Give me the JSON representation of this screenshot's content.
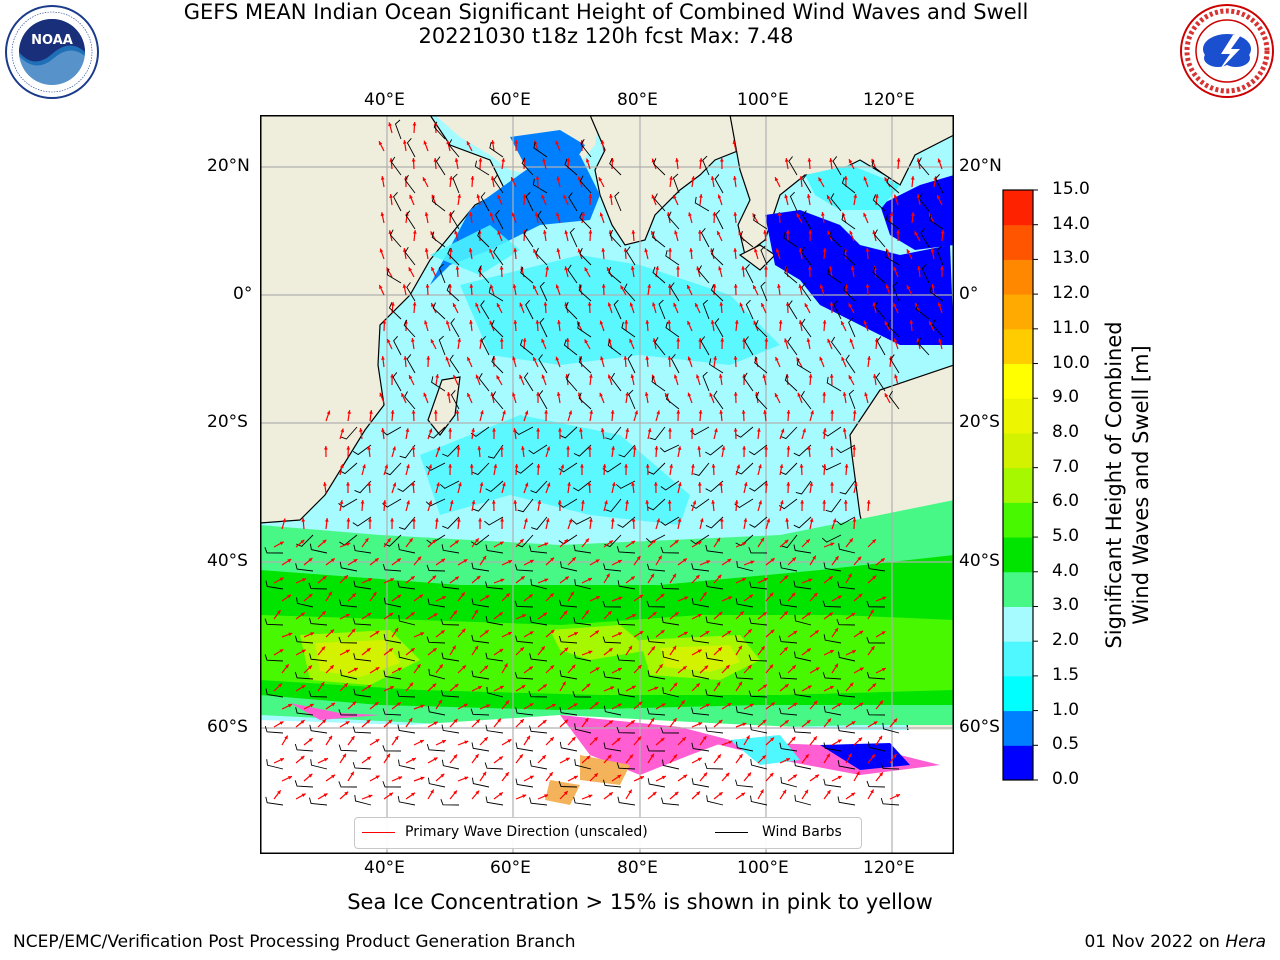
{
  "title": {
    "line1": "GEFS MEAN Indian Ocean Significant Height of Combined Wind Waves and Swell",
    "line2": "20221030 t18z 120h fcst   Max: 7.48"
  },
  "logos": {
    "left": {
      "text": "NOAA",
      "ring_text": "NATIONAL OCEANIC AND ATMOSPHERIC ADMINISTRATION · U.S. DEPARTMENT OF COMMERCE"
    },
    "right": {
      "ring_text": "NATIONAL WEATHER SERVICE"
    }
  },
  "map": {
    "lon_ticks": [
      "40°E",
      "60°E",
      "80°E",
      "100°E",
      "120°E"
    ],
    "lat_ticks_left": [
      "20°N",
      "0°",
      "20°S",
      "40°S",
      "60°S"
    ],
    "lat_ticks_right": [
      "20°N",
      "0°",
      "20°S",
      "40°S",
      "60°S"
    ],
    "colors": {
      "land": "#efeedd",
      "ice": "#ffffff",
      "arrow": "#ff0000",
      "barb": "#000000",
      "grid": "#b0b0b0"
    }
  },
  "legend": {
    "wave_label": "Primary Wave Direction (unscaled)",
    "wind_label": "Wind Barbs",
    "wave_color": "#ff0000",
    "wind_color": "#000000"
  },
  "colorbar": {
    "title_line1": "Significant Height of Combined",
    "title_line2": "Wind Waves and Swell [m]",
    "ticks": [
      "15.0",
      "14.0",
      "13.0",
      "12.0",
      "11.0",
      "10.0",
      "9.0",
      "8.0",
      "7.0",
      "6.0",
      "5.0",
      "4.0",
      "3.0",
      "2.0",
      "1.5",
      "1.0",
      "0.5",
      "0.0"
    ],
    "bands_bottom_to_top": [
      "#0000ff",
      "#0080ff",
      "#00ffff",
      "#4ff7ff",
      "#a5fbff",
      "#48f887",
      "#00e400",
      "#48f800",
      "#a6f800",
      "#d3f200",
      "#eef500",
      "#ffff00",
      "#ffcc00",
      "#ffaa00",
      "#ff8800",
      "#ff5500",
      "#ff2200"
    ]
  },
  "footer": {
    "note": "Sea Ice Concentration > 15% is shown in pink to yellow",
    "left": "NCEP/EMC/Verification Post Processing Product Generation Branch",
    "right_prefix": "01 Nov 2022 on ",
    "right_italic": "Hera"
  }
}
